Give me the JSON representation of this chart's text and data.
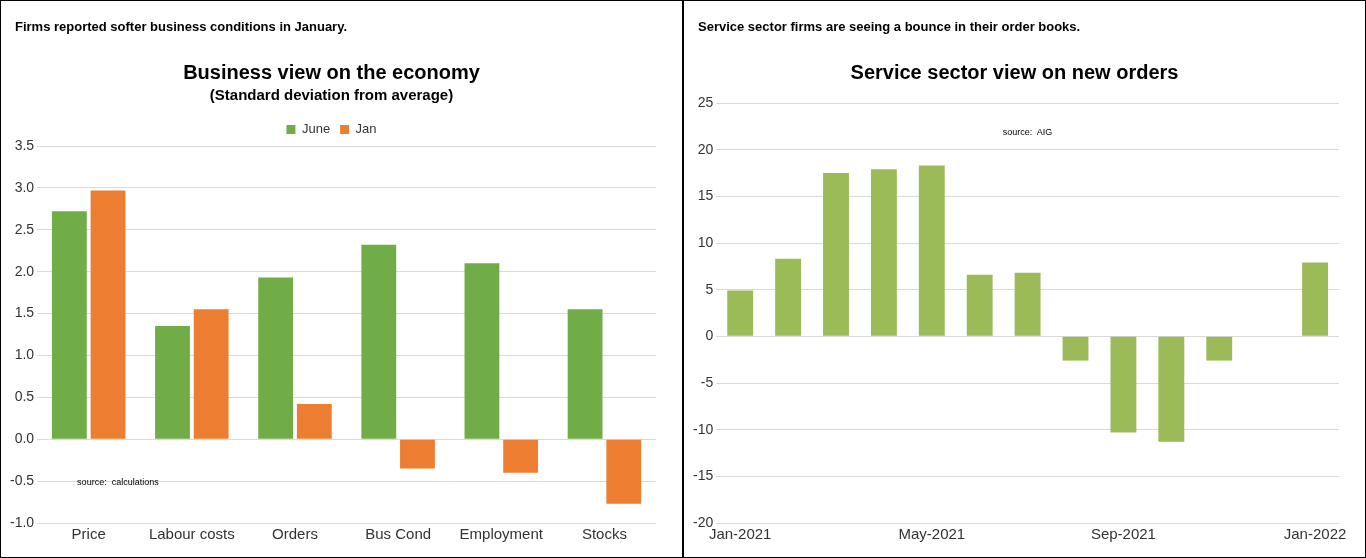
{
  "chart_data": [
    {
      "type": "bar",
      "title": "Business view on the economy",
      "subtitle": "(Standard deviation from average)",
      "categories": [
        "Price",
        "Labour costs",
        "Orders",
        "Bus Cond",
        "Employment",
        "Stocks"
      ],
      "series": [
        {
          "name": "June",
          "color": "#70ad47",
          "values": [
            2.72,
            1.35,
            1.93,
            2.32,
            2.1,
            1.55
          ]
        },
        {
          "name": "Jan",
          "color": "#ed7d31",
          "values": [
            2.97,
            1.55,
            0.42,
            -0.35,
            -0.4,
            -0.77
          ]
        }
      ],
      "ylim": [
        -1,
        3.5
      ],
      "yticks": [
        {
          "value": -1,
          "label": "-1.0"
        },
        {
          "value": -0.5,
          "label": "-0.5"
        },
        {
          "value": 0,
          "label": "0.0"
        },
        {
          "value": 0.5,
          "label": "0.5"
        },
        {
          "value": 1,
          "label": "1.0"
        },
        {
          "value": 1.5,
          "label": "1.5"
        },
        {
          "value": 2,
          "label": "2.0"
        },
        {
          "value": 2.5,
          "label": "2.5"
        },
        {
          "value": 3,
          "label": "3.0"
        },
        {
          "value": 3.5,
          "label": "3.5"
        }
      ],
      "grid": "y",
      "legend": "top",
      "annotations": [
        "Firms reported softer business conditions in January.",
        "source:  calculations"
      ]
    },
    {
      "type": "bar",
      "title": "Service sector view on new orders",
      "categories": [
        "Jan-2021",
        null,
        null,
        null,
        "May-2021",
        null,
        null,
        null,
        "Sep-2021",
        null,
        null,
        null,
        "Jan-2022"
      ],
      "series": [
        {
          "color": "#9bbb59",
          "values": [
            4.9,
            8.3,
            17.5,
            17.9,
            18.3,
            6.6,
            6.8,
            -2.6,
            -10.3,
            -11.3,
            -2.6,
            null,
            7.9
          ]
        }
      ],
      "ylim": [
        -20,
        25
      ],
      "yticks": [
        -20,
        -15,
        -10,
        -5,
        0,
        5,
        10,
        15,
        20,
        25
      ],
      "grid": "y",
      "legend": false,
      "annotations": [
        "Service sector firms are seeing a bounce in their order books.",
        "source:  AIG"
      ]
    }
  ]
}
